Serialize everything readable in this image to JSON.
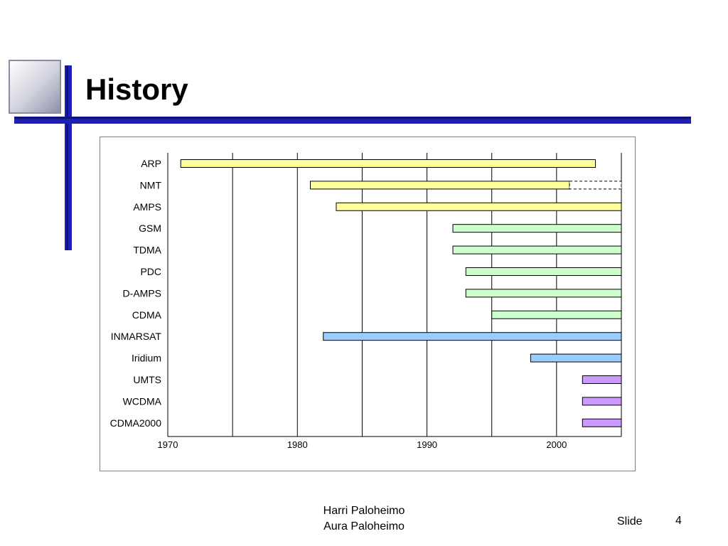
{
  "slide": {
    "title": "History",
    "footer": {
      "author_line1": "Harri Paloheimo",
      "author_line2": "Aura Paloheimo",
      "slide_label": "Slide",
      "slide_number": "4"
    }
  },
  "colors": {
    "accent_blue": "#1c1fb8",
    "analog": "#ffff99",
    "second_gen": "#ccffcc",
    "satellite": "#99ccff",
    "third_gen": "#cc99ff"
  },
  "chart_data": {
    "type": "bar",
    "orientation": "horizontal",
    "title": "",
    "xlabel": "",
    "ylabel": "",
    "xlim": [
      1970,
      2005
    ],
    "x_ticks": [
      1970,
      1980,
      1990,
      2000
    ],
    "vertical_gridlines": [
      1970,
      1975,
      1980,
      1985,
      1990,
      1995,
      2000,
      2005
    ],
    "categories": [
      "ARP",
      "NMT",
      "AMPS",
      "GSM",
      "TDMA",
      "PDC",
      "D-AMPS",
      "CDMA",
      "INMARSAT",
      "Iridium",
      "UMTS",
      "WCDMA",
      "CDMA2000"
    ],
    "series": [
      {
        "values": [
          {
            "start": 1971,
            "end": 2003,
            "color": "#ffff99"
          },
          {
            "start": 1981,
            "end": 2001,
            "dashed_extension_to": 2005,
            "color": "#ffff99"
          },
          {
            "start": 1983,
            "end": 2005,
            "color": "#ffff99"
          },
          {
            "start": 1992,
            "end": 2005,
            "color": "#ccffcc"
          },
          {
            "start": 1992,
            "end": 2005,
            "color": "#ccffcc"
          },
          {
            "start": 1993,
            "end": 2005,
            "color": "#ccffcc"
          },
          {
            "start": 1993,
            "end": 2005,
            "color": "#ccffcc"
          },
          {
            "start": 1995,
            "end": 2005,
            "color": "#ccffcc"
          },
          {
            "start": 1982,
            "end": 2005,
            "color": "#99ccff"
          },
          {
            "start": 1998,
            "end": 2005,
            "color": "#99ccff"
          },
          {
            "start": 2002,
            "end": 2005,
            "color": "#cc99ff"
          },
          {
            "start": 2002,
            "end": 2005,
            "color": "#cc99ff"
          },
          {
            "start": 2002,
            "end": 2005,
            "color": "#cc99ff"
          }
        ]
      }
    ],
    "grid": true,
    "legend": "none"
  }
}
